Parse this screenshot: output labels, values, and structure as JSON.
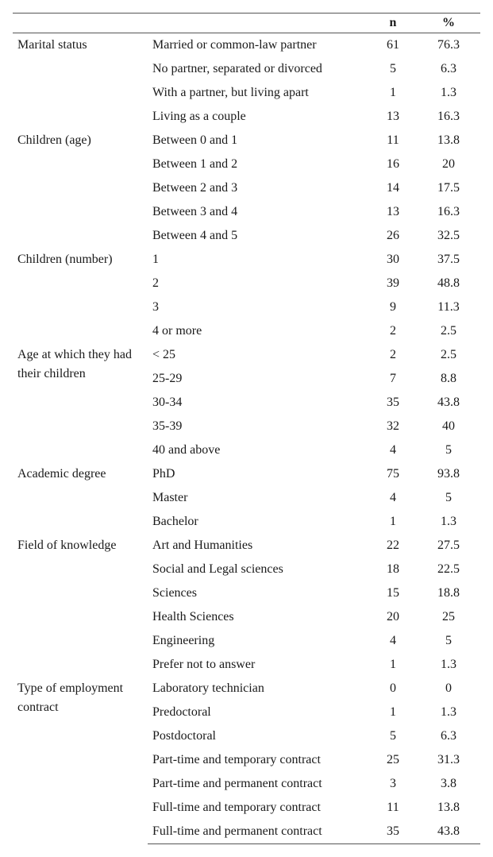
{
  "headers": {
    "n": "n",
    "pct": "%"
  },
  "groups": [
    {
      "category": "Marital status",
      "rows": [
        {
          "item": "Married or common-law partner",
          "n": "61",
          "pct": "76.3"
        },
        {
          "item": "No partner, separated or divorced",
          "n": "5",
          "pct": "6.3"
        },
        {
          "item": "With a partner, but living apart",
          "n": "1",
          "pct": "1.3"
        },
        {
          "item": "Living as a couple",
          "n": "13",
          "pct": "16.3"
        }
      ]
    },
    {
      "category": "Children (age)",
      "rows": [
        {
          "item": "Between 0 and 1",
          "n": "11",
          "pct": "13.8"
        },
        {
          "item": "Between 1 and 2",
          "n": "16",
          "pct": "20"
        },
        {
          "item": "Between 2 and 3",
          "n": "14",
          "pct": "17.5"
        },
        {
          "item": "Between 3 and 4",
          "n": "13",
          "pct": "16.3"
        },
        {
          "item": "Between 4 and 5",
          "n": "26",
          "pct": "32.5"
        }
      ]
    },
    {
      "category": "Children (number)",
      "rows": [
        {
          "item": "1",
          "n": "30",
          "pct": "37.5"
        },
        {
          "item": "2",
          "n": "39",
          "pct": "48.8"
        },
        {
          "item": "3",
          "n": "9",
          "pct": "11.3"
        },
        {
          "item": "4 or more",
          "n": "2",
          "pct": "2.5"
        }
      ]
    },
    {
      "category": "Age at which they had their children",
      "rows": [
        {
          "item": "< 25",
          "n": "2",
          "pct": "2.5"
        },
        {
          "item": "25-29",
          "n": "7",
          "pct": "8.8"
        },
        {
          "item": "30-34",
          "n": "35",
          "pct": "43.8"
        },
        {
          "item": "35-39",
          "n": "32",
          "pct": "40"
        },
        {
          "item": "40 and above",
          "n": "4",
          "pct": "5"
        }
      ]
    },
    {
      "category": "Academic degree",
      "rows": [
        {
          "item": "PhD",
          "n": "75",
          "pct": "93.8"
        },
        {
          "item": "Master",
          "n": "4",
          "pct": "5"
        },
        {
          "item": "Bachelor",
          "n": "1",
          "pct": "1.3"
        }
      ]
    },
    {
      "category": "Field of knowledge",
      "rows": [
        {
          "item": "Art and Humanities",
          "n": "22",
          "pct": "27.5"
        },
        {
          "item": "Social and Legal sciences",
          "n": "18",
          "pct": "22.5"
        },
        {
          "item": "Sciences",
          "n": "15",
          "pct": "18.8"
        },
        {
          "item": "Health Sciences",
          "n": "20",
          "pct": "25"
        },
        {
          "item": "Engineering",
          "n": "4",
          "pct": "5"
        },
        {
          "item": "Prefer not to answer",
          "n": "1",
          "pct": "1.3"
        }
      ]
    },
    {
      "category": "Type of employment contract",
      "rows": [
        {
          "item": "Laboratory technician",
          "n": "0",
          "pct": "0"
        },
        {
          "item": "Predoctoral",
          "n": "1",
          "pct": "1.3"
        },
        {
          "item": "Postdoctoral",
          "n": "5",
          "pct": "6.3"
        },
        {
          "item": "Part-time and temporary contract",
          "n": "25",
          "pct": "31.3"
        },
        {
          "item": "Part-time and permanent contract",
          "n": "3",
          "pct": "3.8"
        },
        {
          "item": "Full-time and temporary contract",
          "n": "11",
          "pct": "13.8"
        },
        {
          "item": "Full-time and permanent contract",
          "n": "35",
          "pct": "43.8"
        }
      ]
    }
  ]
}
